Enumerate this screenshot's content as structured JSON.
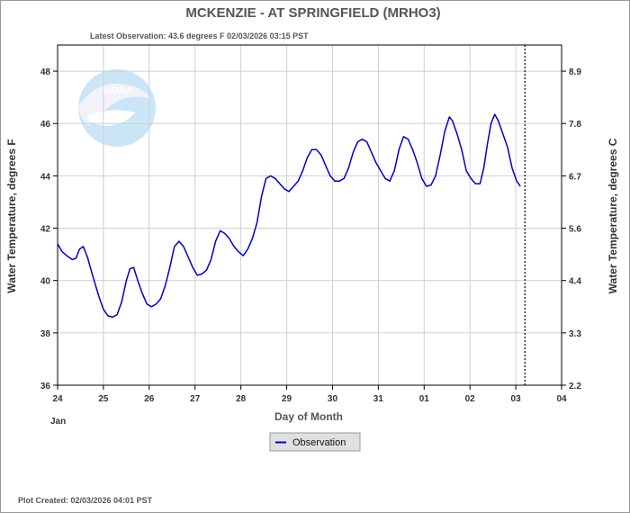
{
  "chart_data": {
    "type": "line",
    "title": "MCKENZIE - AT SPRINGFIELD  (MRHO3)",
    "subtitle": "Latest Observation: 43.6 degrees F 02/03/2026 03:15 PST",
    "xlabel": "Day of Month",
    "ylabel": "Water Temperature, degrees F",
    "ylabel_right": "Water Temperature, degrees C",
    "month_label": "Jan",
    "x_ticks": [
      "24",
      "25",
      "26",
      "27",
      "28",
      "29",
      "30",
      "31",
      "01",
      "02",
      "03",
      "04"
    ],
    "y_ticks": [
      "36",
      "38",
      "40",
      "42",
      "44",
      "46",
      "48"
    ],
    "y2_ticks": [
      "2.2",
      "3.3",
      "4.4",
      "5.6",
      "6.7",
      "7.8",
      "8.9"
    ],
    "xlim": [
      0,
      11
    ],
    "ylim": [
      36,
      49
    ],
    "grid": true,
    "legend_position": "bottom-center",
    "latest_observation_day": 10.2,
    "series": [
      {
        "name": "Observation",
        "color": "#0000cc",
        "points": [
          [
            0.0,
            41.4
          ],
          [
            0.1,
            41.1
          ],
          [
            0.2,
            40.95
          ],
          [
            0.32,
            40.8
          ],
          [
            0.4,
            40.85
          ],
          [
            0.48,
            41.2
          ],
          [
            0.56,
            41.3
          ],
          [
            0.65,
            40.9
          ],
          [
            0.78,
            40.1
          ],
          [
            0.9,
            39.4
          ],
          [
            1.0,
            38.9
          ],
          [
            1.1,
            38.65
          ],
          [
            1.2,
            38.6
          ],
          [
            1.3,
            38.7
          ],
          [
            1.4,
            39.2
          ],
          [
            1.5,
            40.0
          ],
          [
            1.58,
            40.45
          ],
          [
            1.66,
            40.5
          ],
          [
            1.75,
            40.0
          ],
          [
            1.85,
            39.5
          ],
          [
            1.95,
            39.1
          ],
          [
            2.05,
            39.0
          ],
          [
            2.15,
            39.1
          ],
          [
            2.25,
            39.3
          ],
          [
            2.35,
            39.8
          ],
          [
            2.45,
            40.5
          ],
          [
            2.55,
            41.3
          ],
          [
            2.65,
            41.5
          ],
          [
            2.75,
            41.3
          ],
          [
            2.85,
            40.9
          ],
          [
            2.95,
            40.5
          ],
          [
            3.05,
            40.2
          ],
          [
            3.15,
            40.25
          ],
          [
            3.25,
            40.4
          ],
          [
            3.35,
            40.8
          ],
          [
            3.45,
            41.5
          ],
          [
            3.55,
            41.9
          ],
          [
            3.65,
            41.8
          ],
          [
            3.75,
            41.6
          ],
          [
            3.85,
            41.3
          ],
          [
            3.95,
            41.1
          ],
          [
            4.05,
            40.95
          ],
          [
            4.15,
            41.2
          ],
          [
            4.25,
            41.6
          ],
          [
            4.35,
            42.2
          ],
          [
            4.45,
            43.2
          ],
          [
            4.55,
            43.9
          ],
          [
            4.65,
            44.0
          ],
          [
            4.75,
            43.9
          ],
          [
            4.85,
            43.7
          ],
          [
            4.95,
            43.5
          ],
          [
            5.05,
            43.4
          ],
          [
            5.15,
            43.6
          ],
          [
            5.25,
            43.8
          ],
          [
            5.35,
            44.2
          ],
          [
            5.45,
            44.7
          ],
          [
            5.55,
            45.0
          ],
          [
            5.65,
            45.0
          ],
          [
            5.75,
            44.8
          ],
          [
            5.85,
            44.4
          ],
          [
            5.95,
            44.0
          ],
          [
            6.05,
            43.8
          ],
          [
            6.15,
            43.8
          ],
          [
            6.25,
            43.9
          ],
          [
            6.35,
            44.3
          ],
          [
            6.45,
            44.9
          ],
          [
            6.55,
            45.3
          ],
          [
            6.65,
            45.4
          ],
          [
            6.75,
            45.3
          ],
          [
            6.85,
            44.9
          ],
          [
            6.95,
            44.5
          ],
          [
            7.05,
            44.2
          ],
          [
            7.15,
            43.9
          ],
          [
            7.25,
            43.8
          ],
          [
            7.35,
            44.2
          ],
          [
            7.45,
            45.0
          ],
          [
            7.55,
            45.5
          ],
          [
            7.65,
            45.4
          ],
          [
            7.75,
            45.0
          ],
          [
            7.85,
            44.5
          ],
          [
            7.95,
            43.9
          ],
          [
            8.05,
            43.6
          ],
          [
            8.15,
            43.65
          ],
          [
            8.25,
            44.0
          ],
          [
            8.35,
            44.8
          ],
          [
            8.45,
            45.7
          ],
          [
            8.55,
            46.25
          ],
          [
            8.62,
            46.1
          ],
          [
            8.72,
            45.6
          ],
          [
            8.82,
            45.0
          ],
          [
            8.92,
            44.2
          ],
          [
            9.02,
            43.9
          ],
          [
            9.12,
            43.7
          ],
          [
            9.22,
            43.7
          ],
          [
            9.3,
            44.3
          ],
          [
            9.38,
            45.2
          ],
          [
            9.46,
            46.0
          ],
          [
            9.54,
            46.35
          ],
          [
            9.62,
            46.1
          ],
          [
            9.72,
            45.6
          ],
          [
            9.82,
            45.1
          ],
          [
            9.92,
            44.3
          ],
          [
            10.02,
            43.8
          ],
          [
            10.1,
            43.6
          ]
        ]
      }
    ]
  },
  "footer": "Plot Created: 02/03/2026 04:01 PST"
}
